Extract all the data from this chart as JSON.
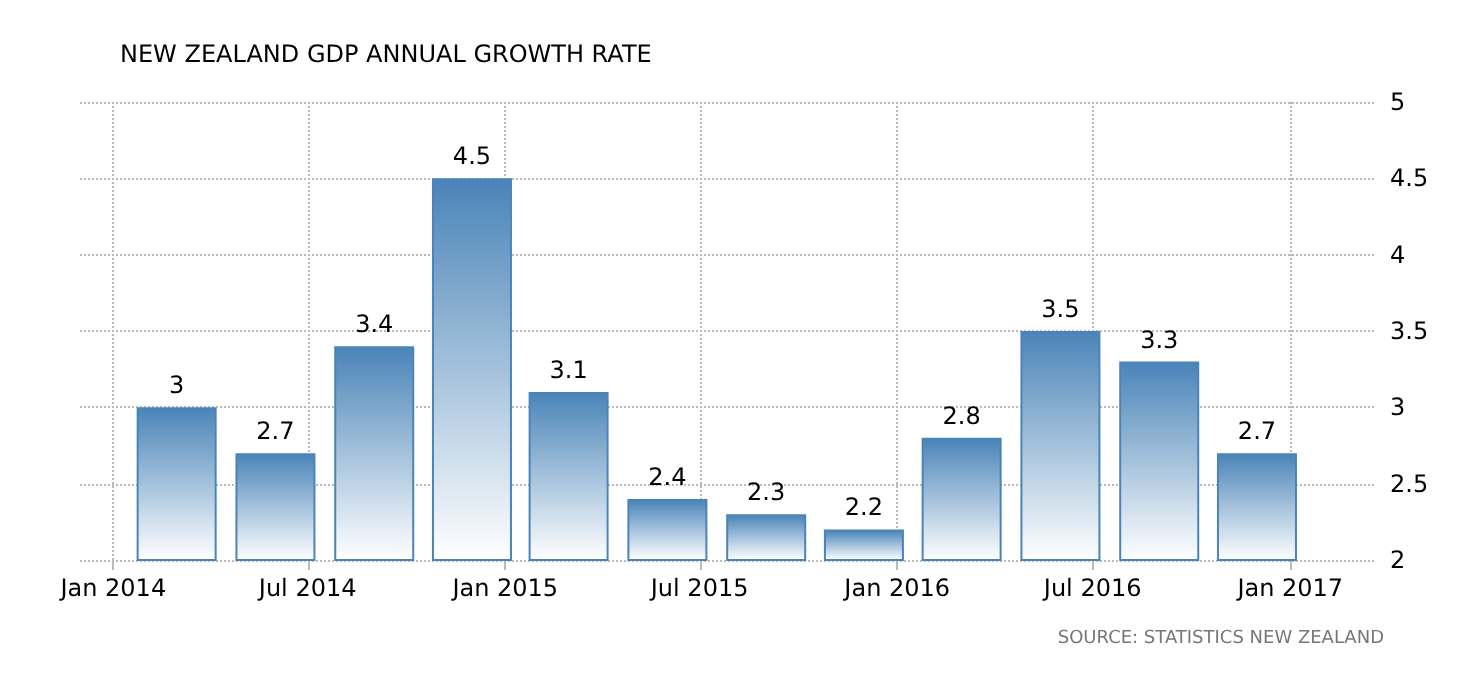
{
  "chart_data": {
    "type": "bar",
    "title": "NEW ZEALAND GDP ANNUAL GROWTH RATE",
    "x": [
      "2014-03",
      "2014-06",
      "2014-09",
      "2014-12",
      "2015-03",
      "2015-06",
      "2015-09",
      "2015-12",
      "2016-03",
      "2016-06",
      "2016-09",
      "2016-12"
    ],
    "values": [
      3,
      2.7,
      3.4,
      4.5,
      3.1,
      2.4,
      2.3,
      2.2,
      2.8,
      3.5,
      3.3,
      2.7
    ],
    "color": "#4a84b8",
    "data_labels": true,
    "xlim": [
      "2013-12",
      "2017-03-20"
    ],
    "xticks": [
      {
        "value": "2014-01",
        "label": "Jan 2014"
      },
      {
        "value": "2014-07",
        "label": "Jul 2014"
      },
      {
        "value": "2015-01",
        "label": "Jan 2015"
      },
      {
        "value": "2015-07",
        "label": "Jul 2015"
      },
      {
        "value": "2016-01",
        "label": "Jan 2016"
      },
      {
        "value": "2016-07",
        "label": "Jul 2016"
      },
      {
        "value": "2017-01",
        "label": "Jan 2017"
      }
    ],
    "ylim": [
      2,
      5
    ],
    "yticks": [
      2,
      2.5,
      3,
      3.5,
      4,
      4.5,
      5
    ],
    "grid": true,
    "annotations": [
      "SOURCE: STATISTICS NEW ZEALAND"
    ]
  }
}
